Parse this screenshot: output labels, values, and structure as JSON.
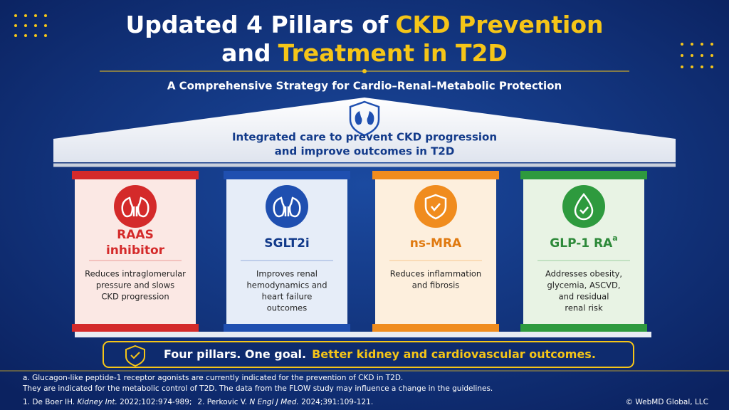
{
  "header": {
    "title_line1": {
      "white": "Updated 4 Pillars of",
      "yellow": "CKD Prevention"
    },
    "title_line2": {
      "white": "and",
      "yellow": "Treatment in T2D"
    },
    "subtitle": "A Comprehensive Strategy for Cardio–Renal–Metabolic Protection"
  },
  "roof": {
    "lines": [
      "Integrated care to prevent CKD progression",
      "and improve outcomes in T2D"
    ]
  },
  "pillars": [
    {
      "name": [
        "RAAS",
        "inhibitor"
      ],
      "description": [
        "Reduces intraglomerular",
        "pressure and slows",
        "CKD progression"
      ]
    },
    {
      "name": [
        "SGLT2i"
      ],
      "description": [
        "Improves renal",
        "hemodynamics and",
        "heart failure",
        "outcomes"
      ]
    },
    {
      "name": [
        "ns-MRA"
      ],
      "description": [
        "Reduces inflammation",
        "and fibrosis"
      ]
    },
    {
      "name": [
        "GLP-1 RA"
      ],
      "superscript": "a",
      "description": [
        "Addresses obesity,",
        "glycemia, ASCVD,",
        "and residual",
        "renal risk"
      ]
    }
  ],
  "banner": {
    "white": "Four pillars. One goal.",
    "yellow": "Better kidney and cardiovascular outcomes."
  },
  "footnotes": {
    "note_a": "a. Glucagon-like peptide-1 receptor agonists are currently indicated for the prevention of CKD in T2D.",
    "note_b": "They are indicated for the metabolic control of T2D. The data from the FLOW study may influence a change in the guidelines.",
    "references": [
      {
        "authors": "1. De Boer IH.",
        "journal": "Kidney Int.",
        "details": "2022;102:974-989;"
      },
      {
        "authors": "2. Perkovic V.",
        "journal": "N Engl J Med.",
        "details": "2024;391:109-121."
      }
    ],
    "copyright": "© WebMD Global, LLC"
  }
}
